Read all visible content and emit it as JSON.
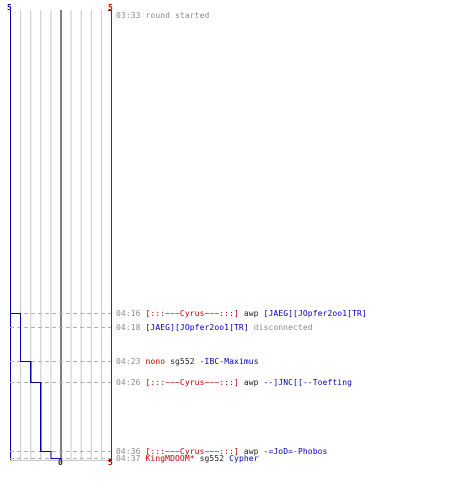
{
  "colors": {
    "red_team": "#c00000",
    "blue_team": "#0000b0",
    "grid": "#c8c8c8",
    "center": "#555555",
    "dash": "#b0b0b0",
    "timestamp": "#8a8a8a",
    "text": "#222222"
  },
  "score_labels": {
    "blue_top": "5",
    "red_top": "5",
    "center_bottom": "0",
    "red_bottom": "5"
  },
  "chart_data": {
    "type": "line",
    "x_range": [
      -5,
      5
    ],
    "time_range": [
      "03:33",
      "04:37"
    ],
    "grid_columns": 10,
    "series": [
      {
        "color": "#0000b0",
        "points": [
          {
            "time": "03:33",
            "value": -5
          },
          {
            "time": "04:16",
            "value": -4
          },
          {
            "time": "04:23",
            "value": -3
          },
          {
            "time": "04:26",
            "value": -2
          },
          {
            "time": "04:36",
            "value": -1
          },
          {
            "time": "04:37",
            "value": 0
          }
        ]
      },
      {
        "color": "#c00000",
        "points": [
          {
            "time": "03:33",
            "value": 5
          },
          {
            "time": "04:37",
            "value": 5
          }
        ]
      }
    ]
  },
  "log": [
    {
      "time": "03:33",
      "parts": [
        {
          "text": "round started",
          "style": "gray"
        }
      ]
    },
    {
      "time": "04:16",
      "parts": [
        {
          "text": "[:::~~~Cyrus~~~:::]",
          "style": "red"
        },
        {
          "text": " awp ",
          "style": "dark"
        },
        {
          "text": "[JAEG][JOpfer2oo1[TR]",
          "style": "blue"
        }
      ]
    },
    {
      "time": "04:18",
      "parts": [
        {
          "text": "[JAEG][JOpfer2oo1[TR]",
          "style": "blue"
        },
        {
          "text": " disconnected",
          "style": "gray"
        }
      ]
    },
    {
      "time": "04:23",
      "parts": [
        {
          "text": "nono",
          "style": "red"
        },
        {
          "text": " sg552 ",
          "style": "dark"
        },
        {
          "text": "-IBC-Maximus",
          "style": "blue"
        }
      ]
    },
    {
      "time": "04:26",
      "parts": [
        {
          "text": "[:::~~~Cyrus~~~:::]",
          "style": "red"
        },
        {
          "text": " awp ",
          "style": "dark"
        },
        {
          "text": "--]JNC[[--Toefting",
          "style": "blue"
        }
      ]
    },
    {
      "time": "04:36",
      "parts": [
        {
          "text": "[:::~~~Cyrus~~~:::]",
          "style": "red"
        },
        {
          "text": " awp ",
          "style": "dark"
        },
        {
          "text": "-=JoD=-Phobos",
          "style": "blue"
        }
      ]
    },
    {
      "time": "04:37",
      "parts": [
        {
          "text": "KingMDOOM*",
          "style": "red"
        },
        {
          "text": " sg552 ",
          "style": "dark"
        },
        {
          "text": "Cypher",
          "style": "blue"
        }
      ]
    }
  ]
}
